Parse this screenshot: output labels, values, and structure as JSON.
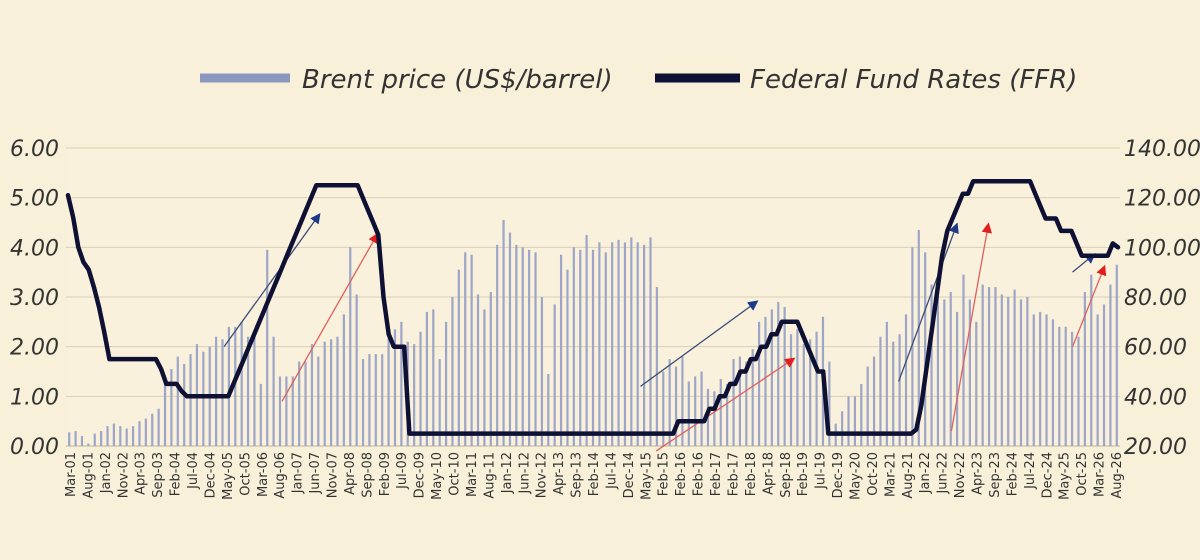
{
  "chart_data": {
    "type": "bar+line",
    "legend": {
      "placement": "top-center",
      "entries": [
        {
          "name": "Brent price (US$/barrel)",
          "color": "#8c97bf",
          "mark": "bar"
        },
        {
          "name": "Federal Fund Rates (FFR)",
          "color": "#0e1133",
          "mark": "line"
        }
      ]
    },
    "y_left": {
      "min": 0,
      "max": 6,
      "ticks": [
        "0.00",
        "1.00",
        "2.00",
        "3.00",
        "4.00",
        "5.00",
        "6.00"
      ]
    },
    "y_right": {
      "min": 20,
      "max": 140,
      "ticks": [
        "20.00",
        "40.00",
        "60.00",
        "80.00",
        "100.00",
        "120.00",
        "140.00"
      ]
    },
    "x_labels": [
      "Mar-01",
      "Aug-01",
      "Jan-02",
      "Nov-02",
      "Apr-03",
      "Sep-03",
      "Feb-04",
      "Jul-04",
      "Dec-04",
      "May-05",
      "Oct-05",
      "Mar-06",
      "Aug-06",
      "Jan-07",
      "Jun-07",
      "Nov-07",
      "Apr-08",
      "Sep-08",
      "Feb-09",
      "Jul-09",
      "Dec-09",
      "May-10",
      "Oct-10",
      "Mar-11",
      "Aug-11",
      "Jan-12",
      "Jun-12",
      "Nov-12",
      "Apr-13",
      "Sep-13",
      "Feb-14",
      "Jul-14",
      "Dec-14",
      "May-15",
      "Feb-15",
      "Feb-16",
      "Feb-16",
      "Feb-17",
      "Feb-17",
      "Feb-18",
      "Apr-18",
      "Sep-18",
      "Feb-19",
      "Jul-19",
      "Dec-19",
      "May-20",
      "Oct-20",
      "Mar-21",
      "Aug-21",
      "Jan-22",
      "Jun-22",
      "Nov-22",
      "Apr-23",
      "Sep-23",
      "Feb-24",
      "Jul-24",
      "Dec-24",
      "May-25",
      "Oct-25",
      "Mar-26",
      "Aug-26"
    ],
    "brent_bars": [
      25.5,
      26,
      24,
      21,
      25,
      26,
      28,
      29,
      28,
      27,
      28,
      30,
      31,
      33,
      35,
      47,
      51,
      56,
      53,
      57,
      61,
      58,
      60,
      64,
      63,
      68,
      68,
      70,
      64,
      64,
      45,
      99,
      64,
      48,
      48,
      48,
      54,
      54,
      61,
      56,
      62,
      63,
      64,
      73,
      100,
      81,
      55,
      57,
      57,
      57,
      68,
      67,
      70,
      62,
      61,
      66,
      74,
      75,
      55,
      70,
      80,
      91,
      98,
      97,
      81,
      75,
      82,
      101,
      111,
      106,
      101,
      100,
      99,
      98,
      80,
      49,
      77,
      97,
      91,
      100,
      99,
      105,
      99,
      102,
      98,
      102,
      103,
      102,
      104,
      102,
      101,
      104,
      84,
      50,
      55,
      52,
      56,
      46,
      48,
      50,
      43,
      42,
      47,
      45,
      55,
      56,
      54,
      59,
      70,
      72,
      75,
      78,
      76,
      65,
      67,
      61,
      63,
      66,
      72,
      54,
      29,
      34,
      40,
      40,
      45,
      52,
      56,
      64,
      70,
      62,
      65,
      73,
      100,
      107,
      98,
      85,
      84,
      79,
      82,
      74,
      89,
      79,
      70,
      85,
      84,
      84,
      81,
      80,
      83,
      79,
      80,
      73,
      74,
      73,
      71,
      68,
      68,
      66,
      64,
      82,
      89,
      73,
      77,
      85,
      93
    ],
    "ffr_line": [
      5.05,
      4.6,
      4.0,
      3.7,
      3.55,
      3.2,
      2.8,
      2.3,
      1.75,
      1.75,
      1.75,
      1.75,
      1.75,
      1.75,
      1.75,
      1.75,
      1.75,
      1.75,
      1.55,
      1.25,
      1.25,
      1.25,
      1.1,
      1.0,
      1.0,
      1.0,
      1.0,
      1.0,
      1.0,
      1.0,
      1.0,
      1.0,
      1.25,
      1.5,
      1.75,
      2.0,
      2.25,
      2.5,
      2.75,
      3.0,
      3.25,
      3.5,
      3.75,
      4.0,
      4.25,
      4.5,
      4.75,
      5.0,
      5.25,
      5.25,
      5.25,
      5.25,
      5.25,
      5.25,
      5.25,
      5.25,
      5.25,
      5.0,
      4.75,
      4.5,
      4.25,
      3.0,
      2.25,
      2.0,
      2.0,
      2.0,
      0.25,
      0.25,
      0.25,
      0.25,
      0.25,
      0.25,
      0.25,
      0.25,
      0.25,
      0.25,
      0.25,
      0.25,
      0.25,
      0.25,
      0.25,
      0.25,
      0.25,
      0.25,
      0.25,
      0.25,
      0.25,
      0.25,
      0.25,
      0.25,
      0.25,
      0.25,
      0.25,
      0.25,
      0.25,
      0.25,
      0.25,
      0.25,
      0.25,
      0.25,
      0.25,
      0.25,
      0.25,
      0.25,
      0.25,
      0.25,
      0.25,
      0.25,
      0.25,
      0.25,
      0.25,
      0.25,
      0.25,
      0.25,
      0.25,
      0.25,
      0.25,
      0.25,
      0.5,
      0.5,
      0.5,
      0.5,
      0.5,
      0.5,
      0.75,
      0.75,
      1.0,
      1.0,
      1.25,
      1.25,
      1.5,
      1.5,
      1.75,
      1.75,
      2.0,
      2.0,
      2.25,
      2.25,
      2.5,
      2.5,
      2.5,
      2.5,
      2.25,
      2.0,
      1.75,
      1.5,
      1.5,
      0.25,
      0.25,
      0.25,
      0.25,
      0.25,
      0.25,
      0.25,
      0.25,
      0.25,
      0.25,
      0.25,
      0.25,
      0.25,
      0.25,
      0.25,
      0.25,
      0.25,
      0.33,
      0.83,
      1.58,
      2.33,
      3.08,
      3.83,
      4.33,
      4.58,
      4.83,
      5.08,
      5.08,
      5.33,
      5.33,
      5.33,
      5.33,
      5.33,
      5.33,
      5.33,
      5.33,
      5.33,
      5.33,
      5.33,
      5.33,
      5.08,
      4.83,
      4.58,
      4.58,
      4.58,
      4.33,
      4.33,
      4.33,
      4.08,
      3.83,
      3.83,
      3.83,
      3.83,
      3.83,
      3.83,
      4.08,
      4.0
    ],
    "trend_arrows": [
      {
        "from": [
          3,
          3.0
        ],
        "to": [
          30,
          5.0
        ],
        "color": "#23335f",
        "axis": "left",
        "x_from": 0.15,
        "x_to": 0.24,
        "y_from": 2.0,
        "y_to": 4.65
      },
      {
        "from": [
          0,
          0
        ],
        "to": [
          0,
          0
        ],
        "color": "#dd2a2a",
        "axis": "left",
        "x_from": 0.205,
        "x_to": 0.295,
        "y_from": 0.9,
        "y_to": 4.25
      },
      {
        "from": [
          0,
          0
        ],
        "to": [
          0,
          0
        ],
        "color": "#23335f",
        "axis": "left",
        "x_from": 0.545,
        "x_to": 0.655,
        "y_from": 1.2,
        "y_to": 2.9
      },
      {
        "from": [
          0,
          0
        ],
        "to": [
          0,
          0
        ],
        "color": "#dd2a2a",
        "axis": "left",
        "x_from": 0.56,
        "x_to": 0.69,
        "y_from": -0.1,
        "y_to": 1.75
      },
      {
        "from": [
          0,
          0
        ],
        "to": [
          0,
          0
        ],
        "color": "#23335f",
        "axis": "left",
        "x_from": 0.79,
        "x_to": 0.845,
        "y_from": 1.3,
        "y_to": 4.45
      },
      {
        "from": [
          0,
          0
        ],
        "to": [
          0,
          0
        ],
        "color": "#dd2a2a",
        "axis": "left",
        "x_from": 0.84,
        "x_to": 0.875,
        "y_from": 0.3,
        "y_to": 4.45
      },
      {
        "from": [
          0,
          0
        ],
        "to": [
          0,
          0
        ],
        "color": "#23335f",
        "axis": "left",
        "x_from": 0.955,
        "x_to": 0.975,
        "y_from": 3.5,
        "y_to": 3.85
      },
      {
        "from": [
          0,
          0
        ],
        "to": [
          0,
          0
        ],
        "color": "#dd2a2a",
        "axis": "left",
        "x_from": 0.955,
        "x_to": 0.985,
        "y_from": 2.0,
        "y_to": 3.6
      }
    ]
  }
}
